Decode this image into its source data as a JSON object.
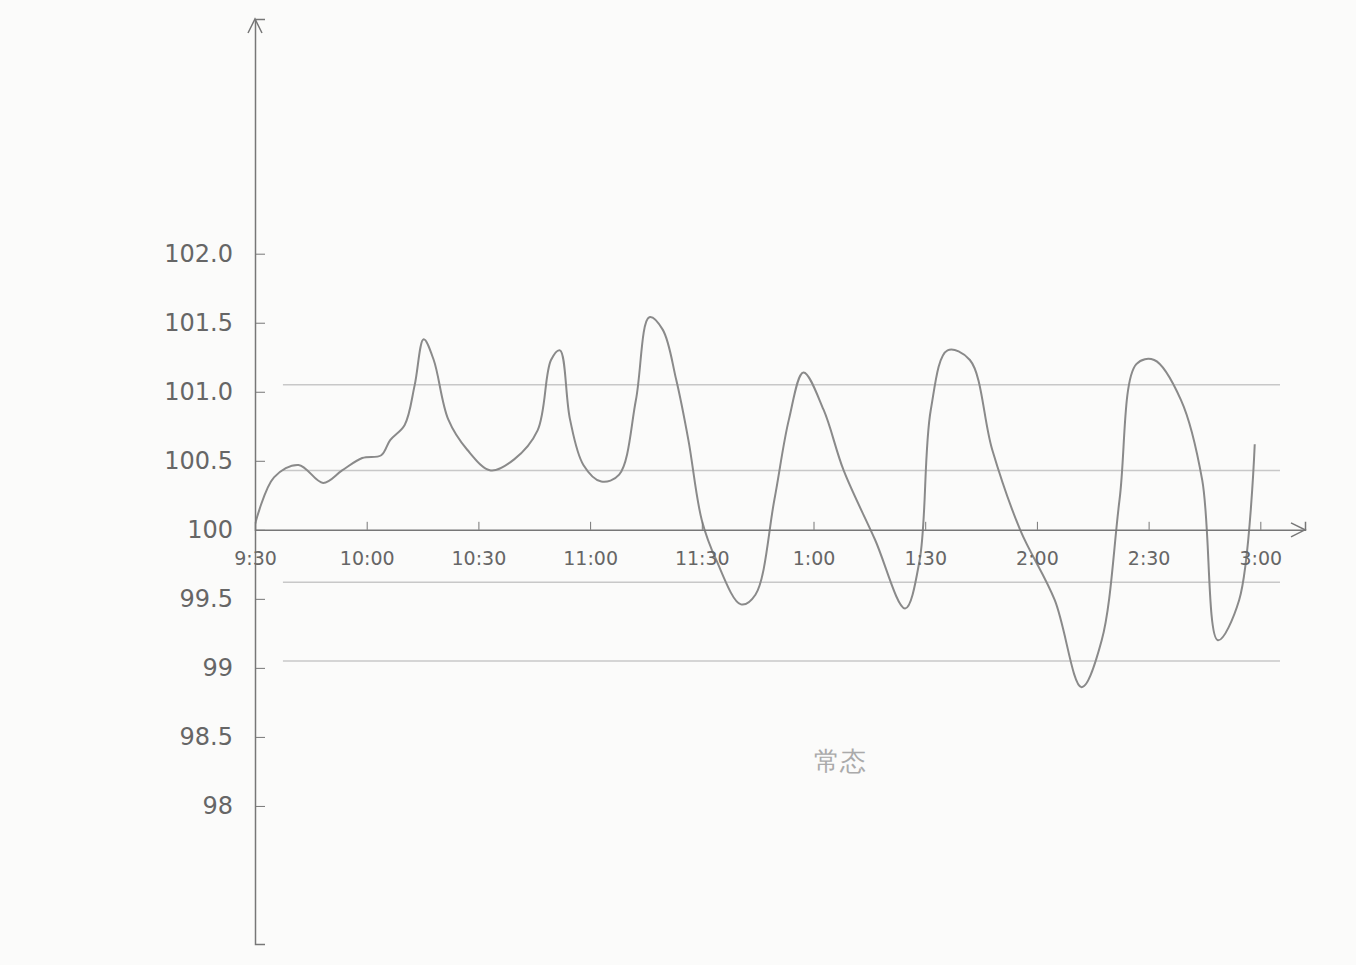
{
  "chart_data": {
    "type": "line",
    "color": "#8a8a8a",
    "annotation": "常态",
    "xlim": [
      0,
      9.4
    ],
    "xticks": [
      {
        "value": 0,
        "label": "9:30"
      },
      {
        "value": 1,
        "label": "10:00"
      },
      {
        "value": 2,
        "label": "10:30"
      },
      {
        "value": 3,
        "label": "11:00"
      },
      {
        "value": 4,
        "label": "11:30"
      },
      {
        "value": 5,
        "label": "1:00"
      },
      {
        "value": 6,
        "label": "1:30"
      },
      {
        "value": 7,
        "label": "2:00"
      },
      {
        "value": 8,
        "label": "2:30"
      },
      {
        "value": 9,
        "label": "3:00"
      }
    ],
    "ylim": [
      97,
      103.7
    ],
    "yticks": [
      98,
      98.5,
      99,
      99.5,
      100,
      100.5,
      {
        "value": 101,
        "label": "101.0"
      },
      101.5,
      {
        "value": 102,
        "label": "102.0"
      }
    ],
    "reference_lines": [
      101.05,
      100.43,
      99.62,
      99.05
    ],
    "x": [
      0.0,
      0.17,
      0.39,
      0.61,
      0.78,
      0.96,
      1.13,
      1.21,
      1.34,
      1.43,
      1.51,
      1.6,
      1.73,
      1.9,
      2.11,
      2.32,
      2.53,
      2.65,
      2.73,
      2.82,
      2.94,
      3.1,
      3.26,
      3.41,
      3.53,
      3.65,
      3.77,
      3.88,
      4.0,
      4.13,
      4.35,
      4.48,
      4.65,
      4.78,
      4.91,
      5.09,
      5.27,
      5.55,
      5.82,
      5.95,
      6.05,
      6.2,
      6.4,
      6.6,
      6.85,
      7.16,
      7.4,
      7.58,
      7.74,
      7.89,
      8.05,
      8.29,
      8.48,
      8.62,
      8.81,
      8.95
    ],
    "values": [
      100.04,
      100.38,
      100.47,
      100.34,
      100.43,
      100.52,
      100.54,
      100.65,
      100.76,
      101.05,
      101.38,
      101.23,
      100.8,
      100.58,
      100.43,
      100.51,
      100.72,
      101.23,
      101.3,
      100.8,
      100.47,
      100.35,
      100.4,
      100.94,
      101.54,
      101.45,
      101.09,
      100.65,
      100.07,
      99.78,
      99.46,
      99.53,
      100.22,
      100.8,
      101.14,
      100.87,
      100.43,
      99.93,
      99.43,
      99.78,
      100.87,
      101.3,
      101.23,
      100.58,
      100.0,
      99.49,
      98.86,
      99.2,
      100.22,
      101.2,
      101.23,
      100.94,
      100.36,
      99.2,
      99.49,
      100.62
    ]
  }
}
